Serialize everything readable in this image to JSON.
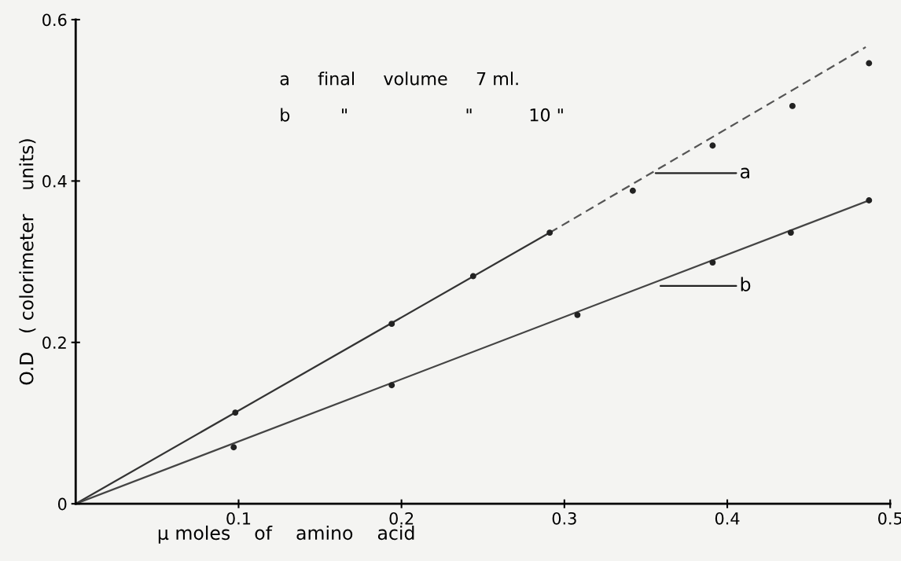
{
  "chart_data": {
    "type": "scatter",
    "xlabel": "μ moles    of    amino    acid",
    "ylabel": "O.D   ( colorimeter    units)",
    "xlim": [
      0,
      0.5
    ],
    "ylim": [
      0,
      0.6
    ],
    "xticks": [
      0.1,
      0.2,
      0.3,
      0.4,
      0.5
    ],
    "yticks": [
      0,
      0.2,
      0.4,
      0.6
    ],
    "grid": false,
    "legend": false,
    "series": [
      {
        "type": "line",
        "color": "#333333",
        "line_style": "solid",
        "marker": "none",
        "x": [
          0,
          0.291
        ],
        "values": [
          0,
          0.336
        ]
      },
      {
        "type": "line",
        "color": "#555555",
        "line_style": "dashed",
        "marker": "none",
        "x": [
          0.291,
          0.485
        ],
        "values": [
          0.336,
          0.566
        ]
      },
      {
        "type": "line",
        "color": "#444444",
        "line_style": "solid",
        "marker": "none",
        "x": [
          0,
          0.487
        ],
        "values": [
          0,
          0.376
        ]
      },
      {
        "color": "#222222",
        "marker": "circle",
        "x": [
          0.098,
          0.194,
          0.244,
          0.291,
          0.342,
          0.391,
          0.44,
          0.487
        ],
        "values": [
          0.113,
          0.223,
          0.282,
          0.336,
          0.388,
          0.444,
          0.493,
          0.546
        ]
      },
      {
        "color": "#222222",
        "marker": "circle",
        "x": [
          0.097,
          0.194,
          0.308,
          0.391,
          0.439,
          0.487
        ],
        "values": [
          0.07,
          0.147,
          0.234,
          0.299,
          0.336,
          0.376
        ]
      }
    ],
    "annotations": [
      "a     final     volume     7 ml.",
      "b         \"                     \"          10 \"",
      "a",
      "b"
    ]
  }
}
